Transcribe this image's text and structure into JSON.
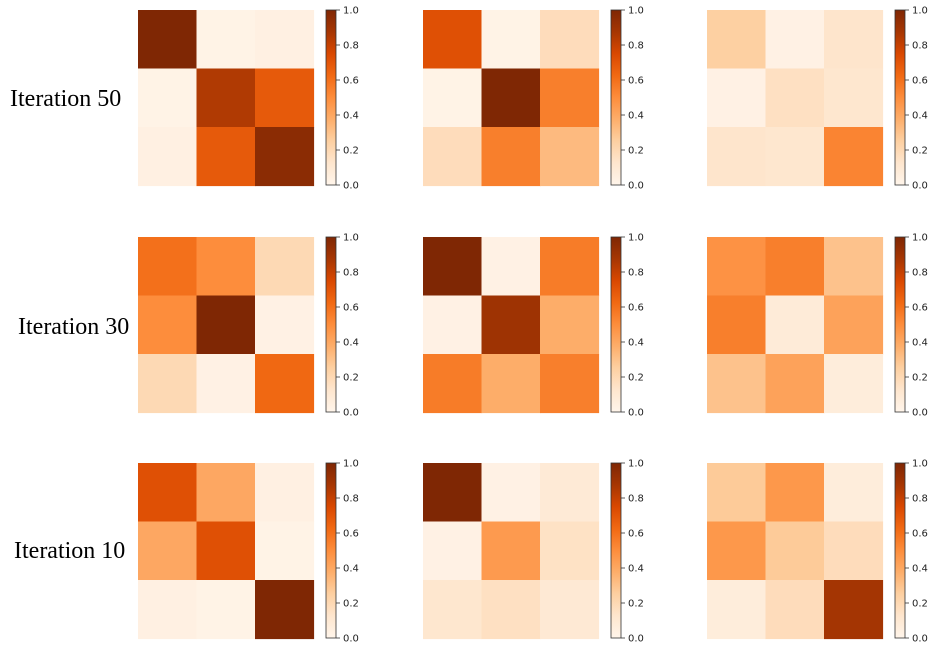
{
  "colorbar": {
    "colors": [
      "#fff5eb",
      "#fee6ce",
      "#fdd0a2",
      "#fdae6b",
      "#fd8d3c",
      "#f16913",
      "#d94801",
      "#a63603",
      "#7f2704"
    ],
    "ticks": [
      0.0,
      0.2,
      0.4,
      0.6,
      0.8,
      1.0
    ],
    "tick_labels": [
      "0.0",
      "0.2",
      "0.4",
      "0.6",
      "0.8",
      "1.0"
    ]
  },
  "chart_data": [
    {
      "type": "heatmap",
      "row_label": "Iteration 50",
      "panel": 1,
      "vmin": 0,
      "vmax": 1,
      "values": [
        [
          1.0,
          0.02,
          0.04
        ],
        [
          0.02,
          0.85,
          0.68
        ],
        [
          0.04,
          0.68,
          0.96
        ]
      ]
    },
    {
      "type": "heatmap",
      "row_label": "Iteration 50",
      "panel": 2,
      "vmin": 0,
      "vmax": 1,
      "values": [
        [
          0.72,
          0.02,
          0.18
        ],
        [
          0.02,
          1.0,
          0.55
        ],
        [
          0.18,
          0.55,
          0.33
        ]
      ]
    },
    {
      "type": "heatmap",
      "row_label": "Iteration 50",
      "panel": 3,
      "vmin": 0,
      "vmax": 1,
      "values": [
        [
          0.25,
          0.03,
          0.13
        ],
        [
          0.03,
          0.16,
          0.12
        ],
        [
          0.13,
          0.12,
          0.53
        ]
      ]
    },
    {
      "type": "heatmap",
      "row_label": "Iteration 30",
      "panel": 1,
      "vmin": 0,
      "vmax": 1,
      "values": [
        [
          0.6,
          0.5,
          0.2
        ],
        [
          0.5,
          1.0,
          0.03
        ],
        [
          0.2,
          0.03,
          0.63
        ]
      ]
    },
    {
      "type": "heatmap",
      "row_label": "Iteration 30",
      "panel": 2,
      "vmin": 0,
      "vmax": 1,
      "values": [
        [
          1.0,
          0.03,
          0.56
        ],
        [
          0.03,
          0.9,
          0.38
        ],
        [
          0.56,
          0.38,
          0.55
        ]
      ]
    },
    {
      "type": "heatmap",
      "row_label": "Iteration 30",
      "panel": 3,
      "vmin": 0,
      "vmax": 1,
      "values": [
        [
          0.48,
          0.55,
          0.3
        ],
        [
          0.55,
          0.08,
          0.42
        ],
        [
          0.3,
          0.42,
          0.07
        ]
      ]
    },
    {
      "type": "heatmap",
      "row_label": "Iteration 10",
      "panel": 1,
      "vmin": 0,
      "vmax": 1,
      "values": [
        [
          0.72,
          0.4,
          0.04
        ],
        [
          0.4,
          0.72,
          0.02
        ],
        [
          0.04,
          0.02,
          1.0
        ]
      ]
    },
    {
      "type": "heatmap",
      "row_label": "Iteration 10",
      "panel": 2,
      "vmin": 0,
      "vmax": 1,
      "values": [
        [
          1.0,
          0.03,
          0.09
        ],
        [
          0.03,
          0.45,
          0.15
        ],
        [
          0.12,
          0.16,
          0.1
        ]
      ]
    },
    {
      "type": "heatmap",
      "row_label": "Iteration 10",
      "panel": 3,
      "vmin": 0,
      "vmax": 1,
      "values": [
        [
          0.27,
          0.46,
          0.07
        ],
        [
          0.46,
          0.27,
          0.18
        ],
        [
          0.07,
          0.18,
          0.88
        ]
      ]
    }
  ]
}
